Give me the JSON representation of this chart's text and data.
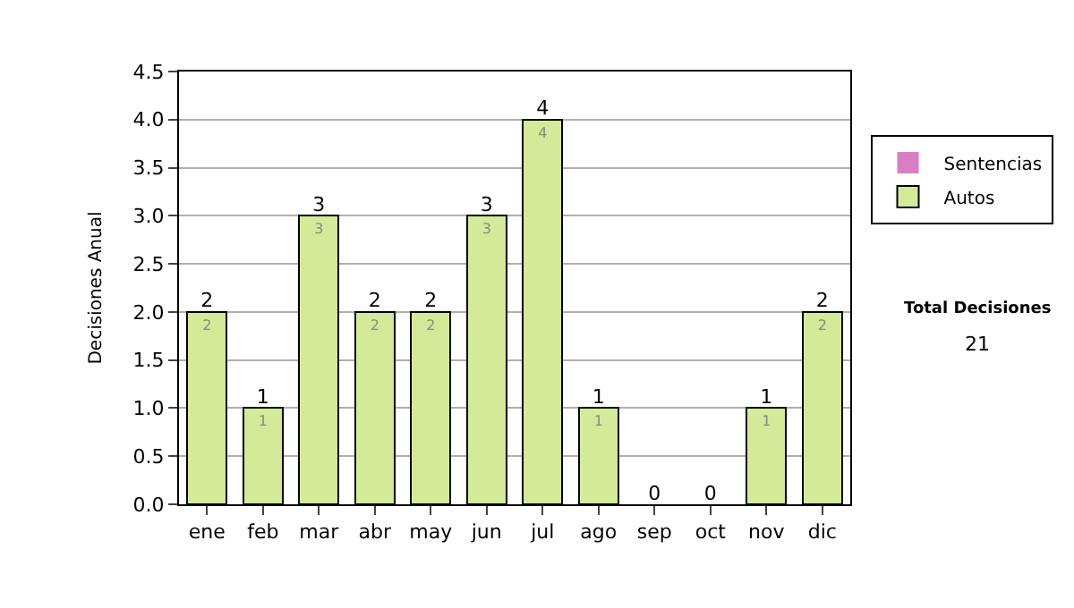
{
  "chart_data": {
    "type": "bar",
    "stacked": true,
    "ylabel": "Decisiones Anual",
    "categories": [
      "ene",
      "feb",
      "mar",
      "abr",
      "may",
      "jun",
      "jul",
      "ago",
      "sep",
      "oct",
      "nov",
      "dic"
    ],
    "series": [
      {
        "name": "Sentencias",
        "color": "#d97ec4",
        "values": [
          0,
          0,
          0,
          0,
          0,
          0,
          0,
          0,
          0,
          0,
          0,
          0
        ]
      },
      {
        "name": "Autos",
        "color": "#d4ea98",
        "values": [
          2,
          1,
          3,
          2,
          2,
          3,
          4,
          1,
          0,
          0,
          1,
          2
        ],
        "value_labels": [
          "2",
          "1",
          "3",
          "2",
          "2",
          "3",
          "4",
          "1",
          null,
          null,
          "1",
          "2"
        ]
      }
    ],
    "totals": [
      "2",
      "1",
      "3",
      "2",
      "2",
      "3",
      "4",
      "1",
      "0",
      "0",
      "1",
      "2"
    ],
    "ylim": [
      0,
      4.5
    ],
    "yticks": [
      {
        "value": 0,
        "label": "0.0"
      },
      {
        "value": 0.5,
        "label": "0.5"
      },
      {
        "value": 1,
        "label": "1.0"
      },
      {
        "value": 1.5,
        "label": "1.5"
      },
      {
        "value": 2,
        "label": "2.0"
      },
      {
        "value": 2.5,
        "label": "2.5"
      },
      {
        "value": 3,
        "label": "3.0"
      },
      {
        "value": 3.5,
        "label": "3.5"
      },
      {
        "value": 4,
        "label": "4.0"
      },
      {
        "value": 4.5,
        "label": "4.5"
      }
    ],
    "grid": "y",
    "legend": "right",
    "annotations": [
      "Total Decisiones",
      "21"
    ]
  }
}
